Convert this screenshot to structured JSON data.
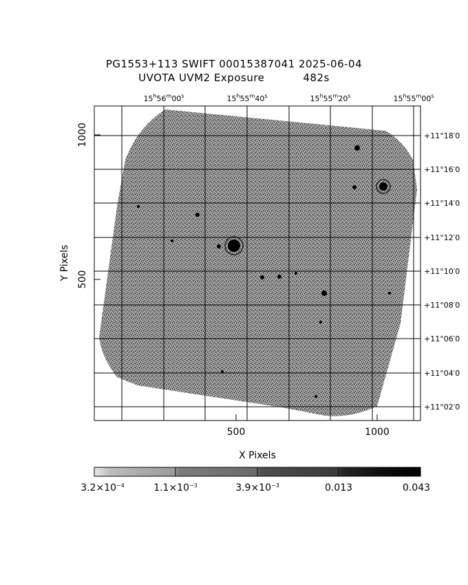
{
  "title_line1": "PG1553+113 SWIFT 00015387041 2025-06-04",
  "title_line2_left": "UVOTA UVM2 Exposure",
  "title_line2_right": "482s",
  "x_axis_label": "X Pixels",
  "y_axis_label": "Y Pixels",
  "x_tick_labels": [
    "500",
    "1000"
  ],
  "y_tick_labels": [
    "500",
    "1000"
  ],
  "ra_labels": [
    {
      "h": "15",
      "m": "56",
      "s": "00"
    },
    {
      "h": "15",
      "m": "55",
      "s": "40"
    },
    {
      "h": "15",
      "m": "55",
      "s": "20"
    },
    {
      "h": "15",
      "m": "55",
      "s": "00"
    }
  ],
  "dec_labels": [
    {
      "d": "+11",
      "m": "18",
      "s": "0"
    },
    {
      "d": "+11",
      "m": "16",
      "s": "0"
    },
    {
      "d": "+11",
      "m": "14",
      "s": "0"
    },
    {
      "d": "+11",
      "m": "12",
      "s": "0"
    },
    {
      "d": "+11",
      "m": "10",
      "s": "0"
    },
    {
      "d": "+11",
      "m": "08",
      "s": "0"
    },
    {
      "d": "+11",
      "m": "06",
      "s": "0"
    },
    {
      "d": "+11",
      "m": "04",
      "s": "0"
    },
    {
      "d": "+11",
      "m": "02",
      "s": "0"
    }
  ],
  "colorbar_labels": [
    {
      "base": "3.2×10",
      "exp": "−4"
    },
    {
      "base": "1.1×10",
      "exp": "−3"
    },
    {
      "base": "3.9×10",
      "exp": "−3"
    },
    {
      "base": "0.013",
      "exp": ""
    },
    {
      "base": "0.043",
      "exp": ""
    }
  ],
  "colors": {
    "background": "#ffffff",
    "ink": "#000000",
    "noise": "#5a5a5a"
  }
}
